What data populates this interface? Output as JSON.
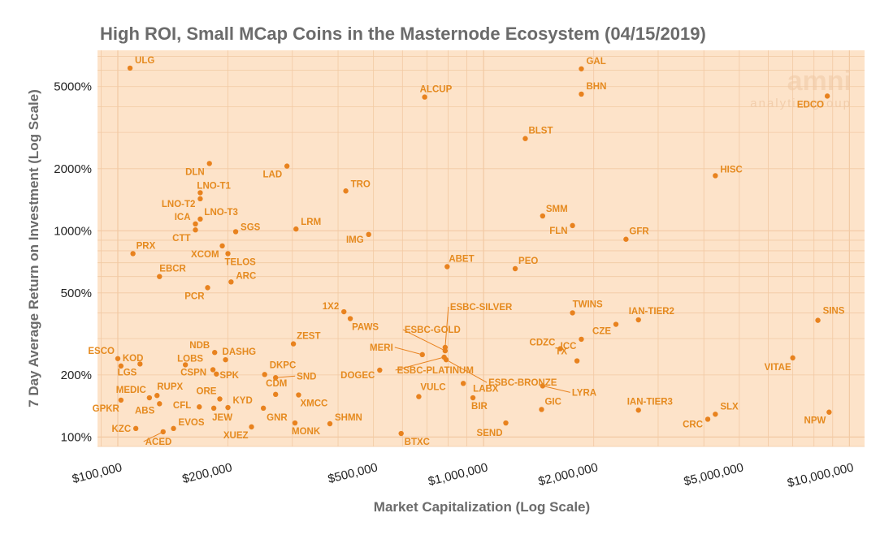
{
  "colors": {
    "panel": "#fde3c9",
    "grid": "#f2c9a3",
    "point": "#e8821e",
    "label": "#e58a1f",
    "title": "#6b6b6b"
  },
  "watermark": {
    "brand": "amni",
    "tagline": "analyticsgroup"
  },
  "chart_data": {
    "type": "scatter",
    "title": "High ROI, Small MCap Coins in the Masternode Ecosystem (04/15/2019)",
    "xlabel": "Market Capitalization (Log Scale)",
    "ylabel": "7 Day Average Return on Investment (Log Scale)",
    "x_scale": "log",
    "y_scale": "log",
    "xlim": [
      88000,
      11000000
    ],
    "ylim": [
      90,
      7500
    ],
    "x_ticks": [
      {
        "value": 100000,
        "label": "$100,000"
      },
      {
        "value": 200000,
        "label": "$200,000"
      },
      {
        "value": 500000,
        "label": "$500,000"
      },
      {
        "value": 1000000,
        "label": "$1,000,000"
      },
      {
        "value": 2000000,
        "label": "$2,000,000"
      },
      {
        "value": 5000000,
        "label": "$5,000,000"
      },
      {
        "value": 10000000,
        "label": "$10,000,000"
      }
    ],
    "y_ticks": [
      {
        "value": 100,
        "label": "100%"
      },
      {
        "value": 200,
        "label": "200%"
      },
      {
        "value": 500,
        "label": "500%"
      },
      {
        "value": 1000,
        "label": "1000%"
      },
      {
        "value": 2000,
        "label": "2000%"
      },
      {
        "value": 5000,
        "label": "5000%"
      }
    ],
    "points": [
      {
        "name": "ULG",
        "x": 108000,
        "y": 6150,
        "lx": 6,
        "ly": -6,
        "anchor": "start"
      },
      {
        "name": "GAL",
        "x": 1850000,
        "y": 6100,
        "lx": 6,
        "ly": -6,
        "anchor": "start"
      },
      {
        "name": "BHN",
        "x": 1850000,
        "y": 4600,
        "lx": 6,
        "ly": -6,
        "anchor": "start"
      },
      {
        "name": "ALCUP",
        "x": 690000,
        "y": 4450,
        "lx": -6,
        "ly": -6,
        "anchor": "start"
      },
      {
        "name": "EDCO",
        "x": 8700000,
        "y": 4500,
        "lx": -4,
        "ly": 14,
        "anchor": "end"
      },
      {
        "name": "BLST",
        "x": 1300000,
        "y": 2800,
        "lx": 4,
        "ly": -6,
        "anchor": "start"
      },
      {
        "name": "DLN",
        "x": 178000,
        "y": 2120,
        "lx": -6,
        "ly": 14,
        "anchor": "end"
      },
      {
        "name": "LAD",
        "x": 290000,
        "y": 2060,
        "lx": -6,
        "ly": 14,
        "anchor": "end"
      },
      {
        "name": "HISC",
        "x": 4300000,
        "y": 1850,
        "lx": 6,
        "ly": -4,
        "anchor": "start"
      },
      {
        "name": "TRO",
        "x": 420000,
        "y": 1560,
        "lx": 6,
        "ly": -5,
        "anchor": "start"
      },
      {
        "name": "LNO-T1",
        "x": 168000,
        "y": 1530,
        "lx": -4,
        "ly": -5,
        "anchor": "start"
      },
      {
        "name": "LNO-T2",
        "x": 168000,
        "y": 1430,
        "lx": -6,
        "ly": 10,
        "anchor": "end"
      },
      {
        "name": "SMM",
        "x": 1450000,
        "y": 1180,
        "lx": 4,
        "ly": -5,
        "anchor": "start"
      },
      {
        "name": "LNO-T3",
        "x": 168000,
        "y": 1140,
        "lx": 5,
        "ly": -5,
        "anchor": "start"
      },
      {
        "name": "ICA",
        "x": 163000,
        "y": 1080,
        "lx": -6,
        "ly": -5,
        "anchor": "end"
      },
      {
        "name": "FLN",
        "x": 1750000,
        "y": 1060,
        "lx": -6,
        "ly": 10,
        "anchor": "end"
      },
      {
        "name": "CTT",
        "x": 163000,
        "y": 1010,
        "lx": -6,
        "ly": 14,
        "anchor": "end"
      },
      {
        "name": "SGS",
        "x": 210000,
        "y": 990,
        "lx": 6,
        "ly": -2,
        "anchor": "start"
      },
      {
        "name": "LRM",
        "x": 307000,
        "y": 1020,
        "lx": 6,
        "ly": -5,
        "anchor": "start"
      },
      {
        "name": "GFR",
        "x": 2450000,
        "y": 910,
        "lx": 4,
        "ly": -6,
        "anchor": "start"
      },
      {
        "name": "IMG",
        "x": 485000,
        "y": 960,
        "lx": -6,
        "ly": 10,
        "anchor": "end"
      },
      {
        "name": "XCOM",
        "x": 193000,
        "y": 845,
        "lx": -4,
        "ly": 14,
        "anchor": "end"
      },
      {
        "name": "PRX",
        "x": 110000,
        "y": 775,
        "lx": 4,
        "ly": -6,
        "anchor": "start"
      },
      {
        "name": "TELOS",
        "x": 200000,
        "y": 775,
        "lx": -4,
        "ly": 14,
        "anchor": "start"
      },
      {
        "name": "ABET",
        "x": 795000,
        "y": 670,
        "lx": 2,
        "ly": -6,
        "anchor": "start"
      },
      {
        "name": "PEO",
        "x": 1220000,
        "y": 655,
        "lx": 4,
        "ly": -6,
        "anchor": "start"
      },
      {
        "name": "EBCR",
        "x": 130000,
        "y": 600,
        "lx": 0,
        "ly": -6,
        "anchor": "start"
      },
      {
        "name": "ARC",
        "x": 204000,
        "y": 565,
        "lx": 6,
        "ly": -4,
        "anchor": "start"
      },
      {
        "name": "PCR",
        "x": 176000,
        "y": 530,
        "lx": -4,
        "ly": 14,
        "anchor": "end"
      },
      {
        "name": "1X2",
        "x": 415000,
        "y": 405,
        "lx": -6,
        "ly": -3,
        "anchor": "end"
      },
      {
        "name": "TWINS",
        "x": 1750000,
        "y": 400,
        "lx": 0,
        "ly": -7,
        "anchor": "start"
      },
      {
        "name": "IAN-TIER2",
        "x": 2650000,
        "y": 370,
        "lx": -12,
        "ly": -7,
        "anchor": "start"
      },
      {
        "name": "SINS",
        "x": 8200000,
        "y": 368,
        "lx": 6,
        "ly": -8,
        "anchor": "start"
      },
      {
        "name": "PAWS",
        "x": 432000,
        "y": 375,
        "lx": 2,
        "ly": 14,
        "anchor": "start"
      },
      {
        "name": "ESBC-SILVER",
        "x": 785000,
        "y": 272,
        "lx": 6,
        "ly": -46,
        "anchor": "start"
      },
      {
        "name": "CZE",
        "x": 2300000,
        "y": 352,
        "lx": -6,
        "ly": 12,
        "anchor": "end"
      },
      {
        "name": "ZEST",
        "x": 302000,
        "y": 283,
        "lx": 4,
        "ly": -6,
        "anchor": "start"
      },
      {
        "name": "NDB",
        "x": 184000,
        "y": 257,
        "lx": -6,
        "ly": -5,
        "anchor": "end"
      },
      {
        "name": "ESBC-GOLD",
        "x": 785000,
        "y": 262,
        "lx": -50,
        "ly": -22,
        "anchor": "start"
      },
      {
        "name": "CDZC",
        "x": 1620000,
        "y": 268,
        "lx": -6,
        "ly": -4,
        "anchor": "end"
      },
      {
        "name": "ICC",
        "x": 1850000,
        "y": 298,
        "lx": -6,
        "ly": 12,
        "anchor": "end"
      },
      {
        "name": "ESCO",
        "x": 100000,
        "y": 240,
        "lx": -4,
        "ly": -6,
        "anchor": "end"
      },
      {
        "name": "KOD",
        "x": 102000,
        "y": 221,
        "lx": 2,
        "ly": -6,
        "anchor": "start"
      },
      {
        "name": "MERI",
        "x": 680000,
        "y": 251,
        "lx": -36,
        "ly": -5,
        "anchor": "end"
      },
      {
        "name": "DASHG",
        "x": 197000,
        "y": 237,
        "lx": -4,
        "ly": -6,
        "anchor": "start"
      },
      {
        "name": "LOBS",
        "x": 153000,
        "y": 224,
        "lx": -10,
        "ly": -4,
        "anchor": "start"
      },
      {
        "name": "ESBC-PLATINUM",
        "x": 780000,
        "y": 244,
        "lx": -58,
        "ly": 20,
        "anchor": "start"
      },
      {
        "name": "TX",
        "x": 1800000,
        "y": 234,
        "lx": -12,
        "ly": -8,
        "anchor": "end"
      },
      {
        "name": "VITAE",
        "x": 7000000,
        "y": 242,
        "lx": -2,
        "ly": 15,
        "anchor": "end"
      },
      {
        "name": "LGS",
        "x": 115000,
        "y": 226,
        "lx": -4,
        "ly": 14,
        "anchor": "end"
      },
      {
        "name": "CSPN",
        "x": 182000,
        "y": 212,
        "lx": -8,
        "ly": 7,
        "anchor": "end"
      },
      {
        "name": "SPK",
        "x": 186000,
        "y": 202,
        "lx": 4,
        "ly": 5,
        "anchor": "start"
      },
      {
        "name": "DKPC",
        "x": 252000,
        "y": 201,
        "lx": 6,
        "ly": -8,
        "anchor": "start"
      },
      {
        "name": "ESBC-BRONZE",
        "x": 790000,
        "y": 237,
        "lx": 52,
        "ly": 32,
        "anchor": "start"
      },
      {
        "name": "DOGEC",
        "x": 520000,
        "y": 211,
        "lx": -6,
        "ly": 10,
        "anchor": "end"
      },
      {
        "name": "SND",
        "x": 270000,
        "y": 194,
        "lx": 26,
        "ly": 2,
        "anchor": "start"
      },
      {
        "name": "LYRA",
        "x": 1450000,
        "y": 177,
        "lx": 36,
        "ly": 12,
        "anchor": "start"
      },
      {
        "name": "LABX",
        "x": 880000,
        "y": 182,
        "lx": 12,
        "ly": 10,
        "anchor": "start"
      },
      {
        "name": "CDM",
        "x": 270000,
        "y": 161,
        "lx": -12,
        "ly": -10,
        "anchor": "start"
      },
      {
        "name": "VULC",
        "x": 665000,
        "y": 157,
        "lx": 2,
        "ly": -8,
        "anchor": "start"
      },
      {
        "name": "MEDIC",
        "x": 122000,
        "y": 155,
        "lx": -4,
        "ly": -6,
        "anchor": "end"
      },
      {
        "name": "RUPX",
        "x": 128000,
        "y": 159,
        "lx": 0,
        "ly": -7,
        "anchor": "start"
      },
      {
        "name": "ORE",
        "x": 190000,
        "y": 153,
        "lx": -4,
        "ly": -6,
        "anchor": "end"
      },
      {
        "name": "KYD",
        "x": 200000,
        "y": 139,
        "lx": 6,
        "ly": -5,
        "anchor": "start"
      },
      {
        "name": "XMCC",
        "x": 312000,
        "y": 160,
        "lx": 2,
        "ly": 14,
        "anchor": "start"
      },
      {
        "name": "BIR",
        "x": 935000,
        "y": 155,
        "lx": -2,
        "ly": 14,
        "anchor": "start"
      },
      {
        "name": "GPKR",
        "x": 102000,
        "y": 151,
        "lx": -2,
        "ly": 14,
        "anchor": "end"
      },
      {
        "name": "ABS",
        "x": 130000,
        "y": 145,
        "lx": -6,
        "ly": 12,
        "anchor": "end"
      },
      {
        "name": "CFL",
        "x": 167000,
        "y": 140,
        "lx": -10,
        "ly": 2,
        "anchor": "end"
      },
      {
        "name": "JEW",
        "x": 183000,
        "y": 138,
        "lx": -2,
        "ly": 15,
        "anchor": "start"
      },
      {
        "name": "GNR",
        "x": 250000,
        "y": 138,
        "lx": 4,
        "ly": 15,
        "anchor": "start"
      },
      {
        "name": "GIC",
        "x": 1440000,
        "y": 136,
        "lx": 4,
        "ly": -6,
        "anchor": "start"
      },
      {
        "name": "IAN-TIER3",
        "x": 2650000,
        "y": 135,
        "lx": -14,
        "ly": -7,
        "anchor": "start"
      },
      {
        "name": "SLX",
        "x": 4300000,
        "y": 129,
        "lx": 6,
        "ly": -6,
        "anchor": "start"
      },
      {
        "name": "NPW",
        "x": 8800000,
        "y": 132,
        "lx": -4,
        "ly": 14,
        "anchor": "end"
      },
      {
        "name": "EVOS",
        "x": 142000,
        "y": 110,
        "lx": 6,
        "ly": -4,
        "anchor": "start"
      },
      {
        "name": "SHMN",
        "x": 380000,
        "y": 116,
        "lx": 6,
        "ly": -4,
        "anchor": "start"
      },
      {
        "name": "MONK",
        "x": 305000,
        "y": 117,
        "lx": -4,
        "ly": 14,
        "anchor": "start"
      },
      {
        "name": "CRC",
        "x": 4100000,
        "y": 122,
        "lx": -6,
        "ly": 10,
        "anchor": "end"
      },
      {
        "name": "SEND",
        "x": 1150000,
        "y": 117,
        "lx": -4,
        "ly": 16,
        "anchor": "end"
      },
      {
        "name": "KZC",
        "x": 112000,
        "y": 110,
        "lx": -6,
        "ly": 4,
        "anchor": "end"
      },
      {
        "name": "XUEZ",
        "x": 232000,
        "y": 112,
        "lx": -4,
        "ly": 14,
        "anchor": "end"
      },
      {
        "name": "BTXC",
        "x": 595000,
        "y": 104,
        "lx": 4,
        "ly": 14,
        "anchor": "start"
      },
      {
        "name": "ACED",
        "x": 133000,
        "y": 106,
        "lx": -22,
        "ly": 16,
        "anchor": "start"
      }
    ]
  }
}
